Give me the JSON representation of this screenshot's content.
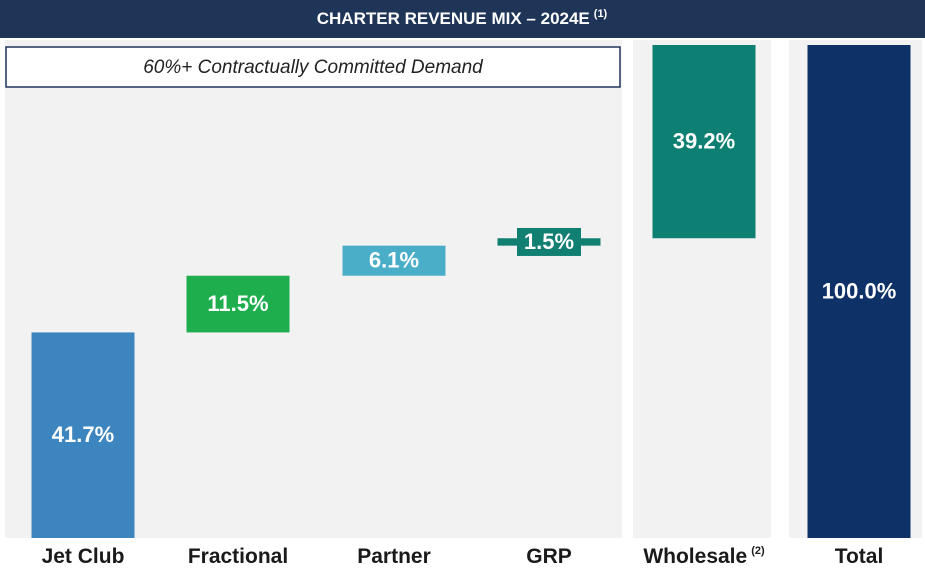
{
  "chart_data": {
    "type": "waterfall",
    "title": "CHARTER REVENUE MIX – 2024E",
    "title_note": "(1)",
    "annotation": "60%+ Contractually Committed Demand",
    "categories": [
      "Jet Club",
      "Fractional",
      "Partner",
      "GRP",
      "Wholesale",
      "Total"
    ],
    "category_notes": [
      null,
      null,
      null,
      null,
      "(2)",
      null
    ],
    "values": [
      41.7,
      11.5,
      6.1,
      1.5,
      39.2,
      100.0
    ],
    "value_labels": [
      "41.7%",
      "11.5%",
      "6.1%",
      "1.5%",
      "39.2%",
      "100.0%"
    ],
    "is_total": [
      false,
      false,
      false,
      false,
      false,
      true
    ],
    "colors": [
      "#3d85bf",
      "#1fae4e",
      "#4aaec9",
      "#117f72",
      "#0d8073",
      "#0e3167"
    ],
    "ylim": [
      0,
      100
    ]
  }
}
